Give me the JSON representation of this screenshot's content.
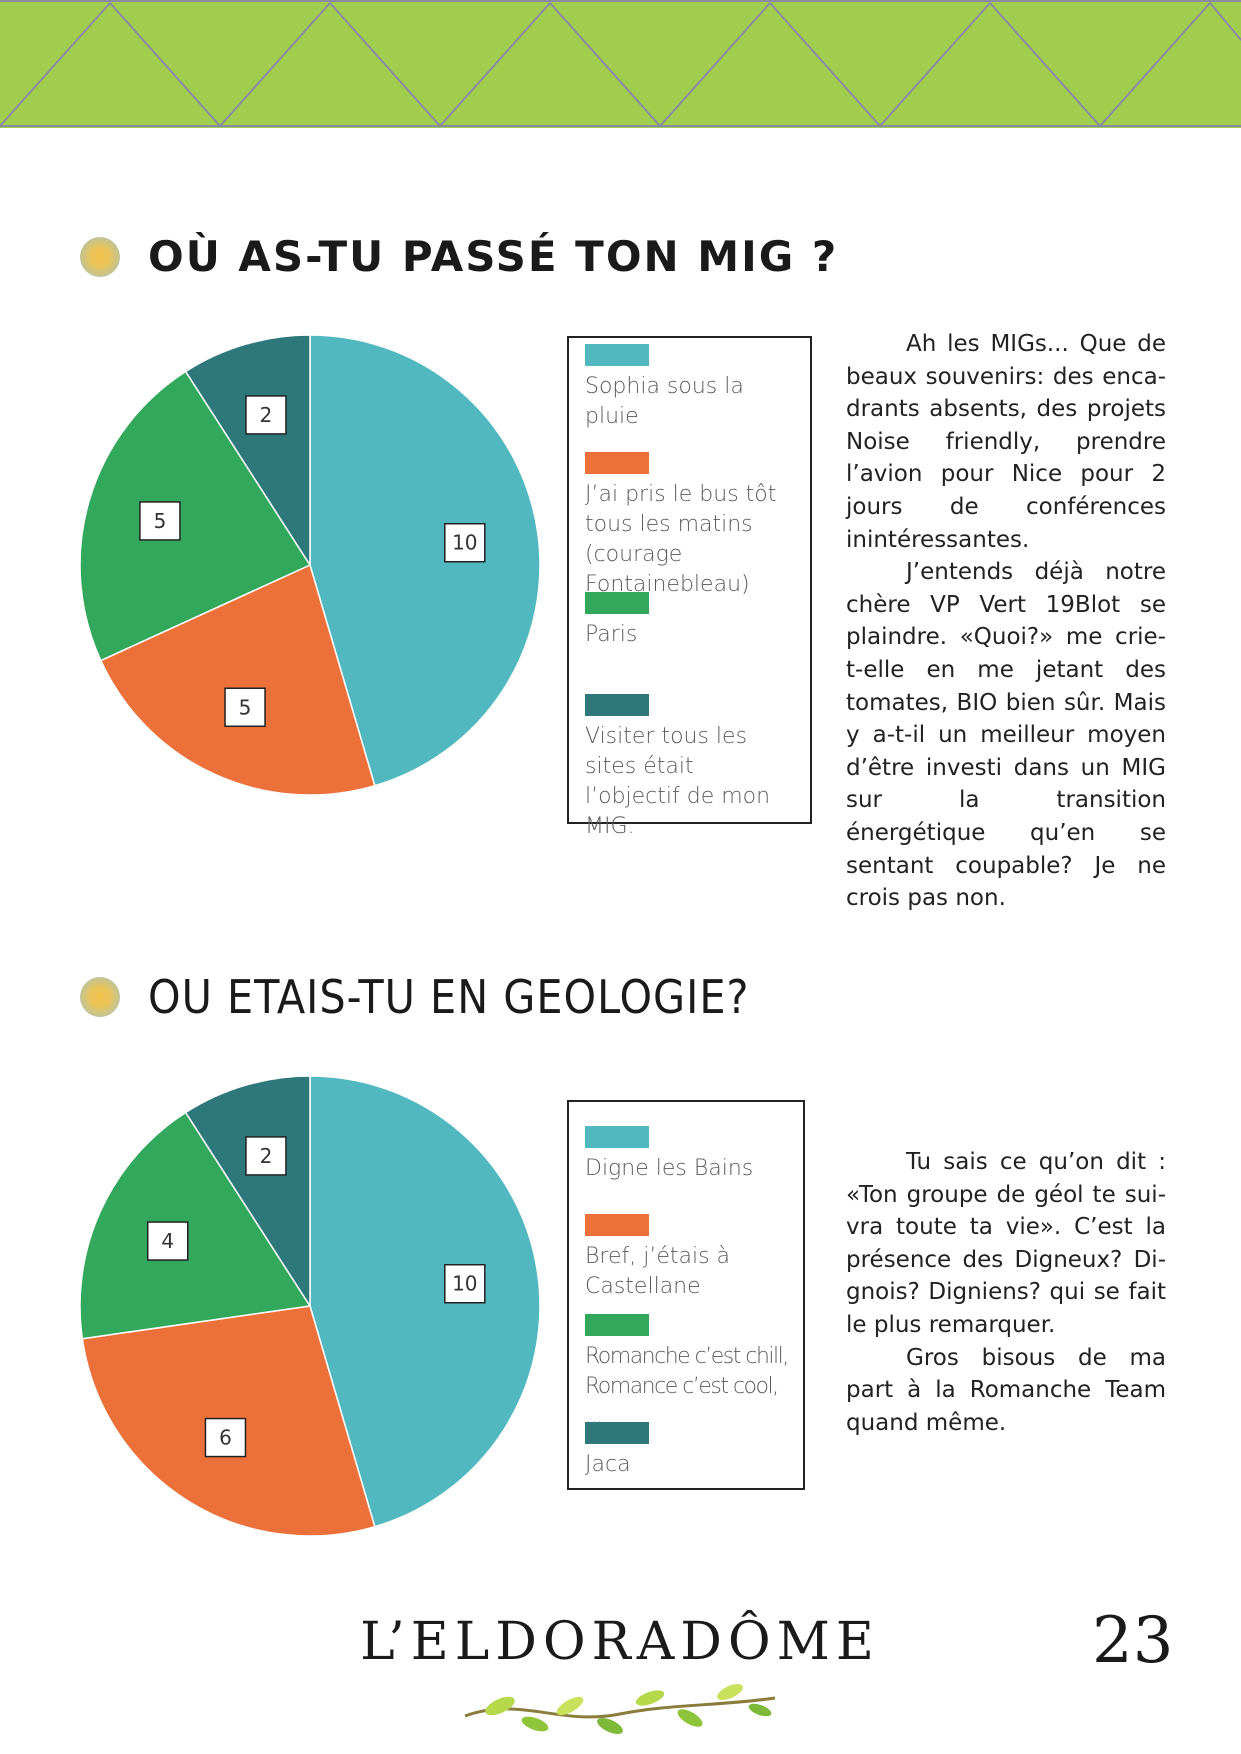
{
  "colors": {
    "banner": "#a1cd4e",
    "banner_lines": "#8a8aa0",
    "teal_light": "#52b8c0",
    "orange": "#ec7039",
    "green": "#32a85c",
    "teal_dark": "#2e777b"
  },
  "section1": {
    "title": "OÙ AS-TU PASSÉ TON MIG ?",
    "paragraphs": [
      "Ah les MIGs... Que de beaux souvenirs: des enca-drants absents, des projets Noise friendly, prendre l’avion pour Nice pour 2 jours de conférences inintéressantes.",
      "J’entends déjà notre chère VP Vert 19Blot se plaindre. «Quoi?» me crie-t-elle en me jetant des tomates, BIO bien sûr. Mais y a-t-il un meilleur moyen d’être investi dans un MIG sur la transition énergétique qu’en se sentant coupable? Je ne crois pas non."
    ]
  },
  "section2": {
    "title": "OU ETAIS-TU EN GEOLOGIE?",
    "paragraphs": [
      "Tu sais ce qu’on dit : «Ton groupe de géol te sui-vra toute ta vie». C’est la présence des Digneux? Di-gnois? Digniens? qui se fait le plus remarquer.",
      "Gros bisous de ma part à la Romanche Team quand même."
    ]
  },
  "chart_data": [
    {
      "type": "pie",
      "categories": [
        "Sophia sous la pluie",
        "J’ai pris le bus tôt tous les matins (courage Fontainebleau)",
        "Paris",
        "Visiter tous les sites était l’objectif de mon MIG."
      ],
      "values": [
        10,
        5,
        5,
        2
      ],
      "colors": [
        "#52b8c0",
        "#ec7039",
        "#32a85c",
        "#2e777b"
      ],
      "data_labels": [
        "10",
        "5",
        "5",
        "2"
      ],
      "legend": "right"
    },
    {
      "type": "pie",
      "categories": [
        "Digne les Bains",
        "Bref, j’étais à Castellane",
        "Romanche c’est chill, Romance c’est cool, ...",
        "Jaca"
      ],
      "values": [
        10,
        6,
        4,
        2
      ],
      "colors": [
        "#52b8c0",
        "#ec7039",
        "#32a85c",
        "#2e777b"
      ],
      "data_labels": [
        "10",
        "6",
        "4",
        "2"
      ],
      "legend": "right"
    }
  ],
  "footer": {
    "title": "L’ELDORADÔME",
    "page_number": "23"
  }
}
